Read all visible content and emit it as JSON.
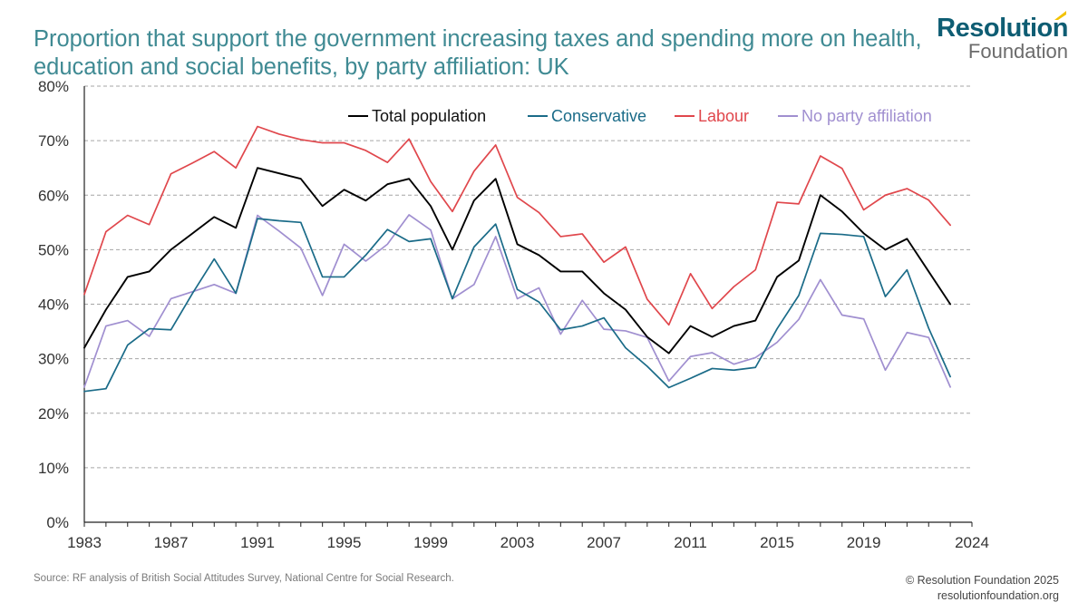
{
  "title": "Proportion that support the government increasing taxes and spending more on health, education and social benefits, by party affiliation: UK",
  "logo": {
    "line1": "Resolution",
    "line2": "Foundation"
  },
  "source": "Source: RF analysis of British Social Attitudes Survey, National Centre for Social Research.",
  "copyright": "© Resolution Foundation 2025",
  "website": "resolutionfoundation.org",
  "colors": {
    "total": "#000000",
    "conservative": "#1a6b88",
    "labour": "#e0474c",
    "none": "#a08fd0",
    "grid": "#a6a6a6",
    "title": "#3f8a93",
    "brand": "#0e5d73",
    "accent": "#f2c200"
  },
  "chart_data": {
    "type": "line",
    "x": [
      1983,
      1984,
      1985,
      1986,
      1987,
      1988,
      1989,
      1990,
      1991,
      1992,
      1993,
      1994,
      1995,
      1996,
      1997,
      1998,
      1999,
      2000,
      2001,
      2002,
      2003,
      2004,
      2005,
      2006,
      2007,
      2008,
      2009,
      2010,
      2011,
      2012,
      2013,
      2014,
      2015,
      2016,
      2017,
      2018,
      2019,
      2020,
      2021,
      2022,
      2023,
      2024
    ],
    "xticks": [
      1983,
      1987,
      1991,
      1995,
      1999,
      2003,
      2007,
      2011,
      2015,
      2019,
      2024
    ],
    "yticks": [
      0,
      10,
      20,
      30,
      40,
      50,
      60,
      70,
      80
    ],
    "ytick_labels": [
      "0%",
      "10%",
      "20%",
      "30%",
      "40%",
      "50%",
      "60%",
      "70%",
      "80%"
    ],
    "ylim": [
      0,
      80
    ],
    "xlim": [
      1983,
      2024
    ],
    "grid": true,
    "legend_position": "top-right",
    "series": [
      {
        "name": "Total population",
        "key": "total",
        "values": [
          32,
          39,
          45,
          46,
          50,
          53,
          56,
          54,
          65,
          64,
          63,
          58,
          61,
          59,
          62,
          63,
          58,
          50,
          59,
          63,
          51,
          49,
          46,
          46,
          42,
          39,
          34,
          31,
          36,
          34,
          36,
          37,
          45,
          48,
          60,
          57,
          53,
          50,
          52,
          46,
          40,
          null
        ]
      },
      {
        "name": "Conservative",
        "key": "conservative",
        "values": [
          24,
          24.5,
          32.5,
          35.5,
          35.3,
          42,
          48.3,
          42,
          55.7,
          55.3,
          55,
          45,
          45,
          49,
          53.7,
          51.5,
          52,
          41,
          50.5,
          54.7,
          42.7,
          40.4,
          35.3,
          36,
          37.5,
          32,
          28.6,
          24.7,
          26.4,
          28.2,
          27.9,
          28.4,
          35.5,
          41.6,
          53,
          52.8,
          52.4,
          41.4,
          46.3,
          35.6,
          26.7,
          null
        ]
      },
      {
        "name": "Labour",
        "key": "labour",
        "values": [
          41.8,
          53.3,
          56.3,
          54.6,
          63.9,
          65.9,
          68,
          65,
          72.6,
          71.2,
          70.2,
          69.6,
          69.6,
          68.2,
          66,
          70.3,
          62.5,
          57,
          64.4,
          69.2,
          59.6,
          56.8,
          52.4,
          52.9,
          47.7,
          50.5,
          40.9,
          36.2,
          45.6,
          39.2,
          43.2,
          46.3,
          58.7,
          58.4,
          67.2,
          64.9,
          57.3,
          60,
          61.2,
          59.1,
          54.5,
          null
        ]
      },
      {
        "name": "No party affiliation",
        "key": "none",
        "values": [
          24.8,
          36,
          37,
          34.1,
          41,
          42.3,
          43.6,
          42,
          56.3,
          53.4,
          50.3,
          41.6,
          51,
          47.9,
          51,
          56.4,
          53.6,
          41,
          43.6,
          52.4,
          41,
          43,
          34.5,
          40.7,
          35.4,
          35.1,
          33.9,
          25.9,
          30.4,
          31.1,
          29,
          30.2,
          33,
          37.2,
          44.5,
          38,
          37.3,
          27.9,
          34.8,
          33.9,
          24.8,
          null
        ]
      }
    ]
  }
}
